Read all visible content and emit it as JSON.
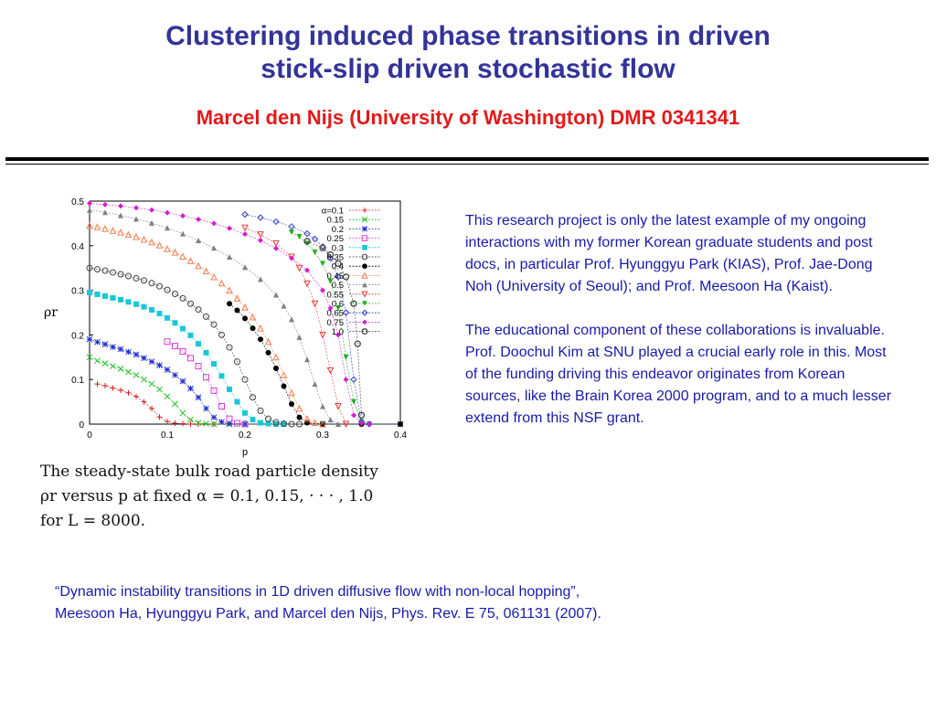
{
  "slide": {
    "title_line1": "Clustering induced phase transitions in driven",
    "title_line2": "stick-slip driven stochastic flow",
    "author": "Marcel den Nijs (University of Washington) DMR 0341341",
    "caption_lines": [
      "The steady-state bulk road particle density",
      "ρr versus p at fixed α = 0.1, 0.15, · · · , 1.0",
      "for L = 8000."
    ],
    "paragraph1": "This research project is only the latest example of my ongoing interactions with my former Korean graduate students and post docs, in particular Prof. Hyunggyu Park (KIAS), Prof. Jae-Dong Noh (University of Seoul); and Prof. Meesoon Ha (Kaist).",
    "paragraph2": "The educational component of these collaborations is invaluable. Prof. Doochul Kim at SNU played a crucial early role in this. Most of the funding driving this endeavor originates from Korean sources, like the Brain Korea 2000 program, and to a much lesser extend from this NSF grant.",
    "reference_line1": "“Dynamic instability transitions in 1D driven diffusive flow with non-local hopping”,",
    "reference_line2": "Meesoon Ha, Hyunggyu Park, and  Marcel den Nijs, Phys. Rev. E 75, 061131 (2007)."
  },
  "chart_data": {
    "type": "scatter",
    "xlabel": "p",
    "ylabel": "ρr",
    "xlim": [
      0,
      0.4
    ],
    "ylim": [
      0,
      0.5
    ],
    "xticks": [
      "0",
      "0.1",
      "0.2",
      "0.3",
      "0.4"
    ],
    "yticks": [
      "0",
      "0.1",
      "0.2",
      "0.3",
      "0.4",
      "0.5"
    ],
    "legend_position": "top-right",
    "series": [
      {
        "name": "α=0.1",
        "color": "#d62020",
        "marker": "plus",
        "x": [
          0.01,
          0.02,
          0.03,
          0.04,
          0.05,
          0.06,
          0.07,
          0.08,
          0.09,
          0.1,
          0.11,
          0.12,
          0.13,
          0.14,
          0.16,
          0.2,
          0.3,
          0.4
        ],
        "y": [
          0.09,
          0.086,
          0.081,
          0.076,
          0.07,
          0.062,
          0.05,
          0.035,
          0.016,
          0.006,
          0.002,
          0.001,
          0,
          0,
          0,
          0,
          0,
          0
        ]
      },
      {
        "name": "0.15",
        "color": "#20c020",
        "marker": "x",
        "x": [
          0.0,
          0.01,
          0.02,
          0.03,
          0.04,
          0.05,
          0.06,
          0.07,
          0.08,
          0.09,
          0.1,
          0.11,
          0.12,
          0.13,
          0.14,
          0.15,
          0.16,
          0.18,
          0.2,
          0.3,
          0.4
        ],
        "y": [
          0.15,
          0.142,
          0.136,
          0.13,
          0.124,
          0.117,
          0.11,
          0.1,
          0.09,
          0.078,
          0.062,
          0.045,
          0.025,
          0.01,
          0.003,
          0.001,
          0,
          0,
          0,
          0,
          0
        ]
      },
      {
        "name": "0.2",
        "color": "#2030d0",
        "marker": "star",
        "x": [
          0.0,
          0.01,
          0.02,
          0.03,
          0.04,
          0.05,
          0.06,
          0.07,
          0.08,
          0.09,
          0.1,
          0.11,
          0.12,
          0.13,
          0.14,
          0.15,
          0.16,
          0.17,
          0.18,
          0.2,
          0.3,
          0.4
        ],
        "y": [
          0.19,
          0.184,
          0.179,
          0.173,
          0.168,
          0.162,
          0.156,
          0.148,
          0.14,
          0.132,
          0.122,
          0.11,
          0.096,
          0.08,
          0.06,
          0.035,
          0.015,
          0.005,
          0.001,
          0,
          0,
          0
        ]
      },
      {
        "name": "0.25",
        "color": "#d040d0",
        "marker": "square-open",
        "x": [
          0.1,
          0.11,
          0.12,
          0.13,
          0.14,
          0.15,
          0.16,
          0.17,
          0.18,
          0.19,
          0.2
        ],
        "y": [
          0.185,
          0.175,
          0.163,
          0.148,
          0.13,
          0.105,
          0.075,
          0.04,
          0.012,
          0.002,
          0
        ]
      },
      {
        "name": "0.3",
        "color": "#18c8d8",
        "marker": "square-filled",
        "x": [
          0.0,
          0.01,
          0.02,
          0.03,
          0.04,
          0.05,
          0.06,
          0.07,
          0.08,
          0.09,
          0.1,
          0.11,
          0.12,
          0.13,
          0.14,
          0.15,
          0.16,
          0.17,
          0.18,
          0.19,
          0.2,
          0.21,
          0.22,
          0.23,
          0.24,
          0.25
        ],
        "y": [
          0.295,
          0.291,
          0.287,
          0.283,
          0.279,
          0.274,
          0.269,
          0.263,
          0.256,
          0.248,
          0.238,
          0.227,
          0.214,
          0.199,
          0.18,
          0.16,
          0.135,
          0.108,
          0.078,
          0.05,
          0.025,
          0.01,
          0.003,
          0.001,
          0,
          0
        ]
      },
      {
        "name": "0.35",
        "color": "#404040",
        "marker": "circle-open",
        "x": [
          0.0,
          0.01,
          0.02,
          0.03,
          0.04,
          0.05,
          0.06,
          0.07,
          0.08,
          0.09,
          0.1,
          0.11,
          0.12,
          0.13,
          0.14,
          0.15,
          0.16,
          0.17,
          0.18,
          0.19,
          0.2,
          0.21,
          0.22,
          0.23,
          0.24,
          0.25,
          0.26,
          0.27
        ],
        "y": [
          0.35,
          0.347,
          0.344,
          0.34,
          0.336,
          0.332,
          0.327,
          0.322,
          0.316,
          0.309,
          0.301,
          0.292,
          0.282,
          0.27,
          0.257,
          0.241,
          0.223,
          0.2,
          0.172,
          0.14,
          0.1,
          0.06,
          0.03,
          0.012,
          0.004,
          0.001,
          0,
          0
        ]
      },
      {
        "name": "0.4",
        "color": "#000000",
        "marker": "circle-filled",
        "x": [
          0.18,
          0.19,
          0.2,
          0.21,
          0.22,
          0.23,
          0.24,
          0.25,
          0.26,
          0.27,
          0.28,
          0.3,
          0.35,
          0.4
        ],
        "y": [
          0.27,
          0.255,
          0.237,
          0.215,
          0.19,
          0.16,
          0.125,
          0.085,
          0.045,
          0.015,
          0.003,
          0,
          0,
          0
        ]
      },
      {
        "name": "0.45",
        "color": "#f08050",
        "marker": "triangle-open",
        "x": [
          0.0,
          0.01,
          0.02,
          0.03,
          0.04,
          0.05,
          0.06,
          0.07,
          0.08,
          0.09,
          0.1,
          0.11,
          0.12,
          0.13,
          0.14,
          0.15,
          0.16,
          0.17,
          0.18,
          0.19,
          0.2,
          0.21,
          0.22,
          0.23,
          0.24,
          0.25,
          0.26,
          0.27,
          0.28,
          0.29,
          0.3
        ],
        "y": [
          0.445,
          0.442,
          0.438,
          0.434,
          0.43,
          0.425,
          0.42,
          0.414,
          0.408,
          0.401,
          0.393,
          0.385,
          0.376,
          0.366,
          0.355,
          0.343,
          0.33,
          0.316,
          0.3,
          0.282,
          0.262,
          0.24,
          0.215,
          0.185,
          0.15,
          0.11,
          0.07,
          0.035,
          0.012,
          0.003,
          0
        ]
      },
      {
        "name": "0.5",
        "color": "#808080",
        "marker": "triangle-filled",
        "x": [
          0.0,
          0.02,
          0.04,
          0.06,
          0.08,
          0.1,
          0.12,
          0.14,
          0.16,
          0.18,
          0.2,
          0.22,
          0.24,
          0.25,
          0.26,
          0.27,
          0.28,
          0.29,
          0.3,
          0.31,
          0.32
        ],
        "y": [
          0.48,
          0.475,
          0.468,
          0.46,
          0.451,
          0.44,
          0.427,
          0.412,
          0.395,
          0.375,
          0.352,
          0.325,
          0.29,
          0.265,
          0.235,
          0.195,
          0.145,
          0.09,
          0.04,
          0.01,
          0
        ]
      },
      {
        "name": "0.55",
        "color": "#e04040",
        "marker": "triangle-down",
        "x": [
          0.2,
          0.22,
          0.24,
          0.26,
          0.27,
          0.28,
          0.29,
          0.3,
          0.31,
          0.32,
          0.33
        ],
        "y": [
          0.44,
          0.425,
          0.405,
          0.375,
          0.35,
          0.315,
          0.27,
          0.2,
          0.12,
          0.04,
          0
        ]
      },
      {
        "name": "0.6",
        "color": "#20b020",
        "marker": "triangle-down-filled",
        "x": [
          0.26,
          0.27,
          0.28,
          0.29,
          0.3,
          0.31,
          0.32,
          0.33,
          0.34,
          0.35,
          0.36
        ],
        "y": [
          0.43,
          0.42,
          0.405,
          0.385,
          0.36,
          0.32,
          0.26,
          0.15,
          0.05,
          0.005,
          0
        ]
      },
      {
        "name": "0.65",
        "color": "#3040c0",
        "marker": "diamond-open",
        "x": [
          0.2,
          0.22,
          0.24,
          0.26,
          0.28,
          0.29,
          0.3,
          0.31,
          0.32,
          0.33,
          0.34,
          0.35,
          0.36
        ],
        "y": [
          0.47,
          0.463,
          0.454,
          0.443,
          0.427,
          0.415,
          0.398,
          0.372,
          0.33,
          0.25,
          0.1,
          0.005,
          0
        ]
      },
      {
        "name": "0.75",
        "color": "#d020d0",
        "marker": "diamond-filled",
        "x": [
          0.0,
          0.02,
          0.04,
          0.06,
          0.08,
          0.1,
          0.12,
          0.14,
          0.16,
          0.18,
          0.2,
          0.22,
          0.24,
          0.26,
          0.28,
          0.3,
          0.31,
          0.32,
          0.33,
          0.34,
          0.35,
          0.36
        ],
        "y": [
          0.495,
          0.492,
          0.489,
          0.485,
          0.48,
          0.474,
          0.467,
          0.459,
          0.45,
          0.439,
          0.426,
          0.412,
          0.394,
          0.372,
          0.345,
          0.3,
          0.26,
          0.2,
          0.1,
          0.02,
          0.002,
          0
        ]
      },
      {
        "name": "1.0",
        "color": "#404040",
        "marker": "hexagon-open",
        "x": [
          0.28,
          0.3,
          0.31,
          0.32,
          0.33,
          0.34,
          0.345,
          0.35
        ],
        "y": [
          0.41,
          0.395,
          0.38,
          0.36,
          0.33,
          0.27,
          0.18,
          0.02
        ]
      }
    ]
  }
}
